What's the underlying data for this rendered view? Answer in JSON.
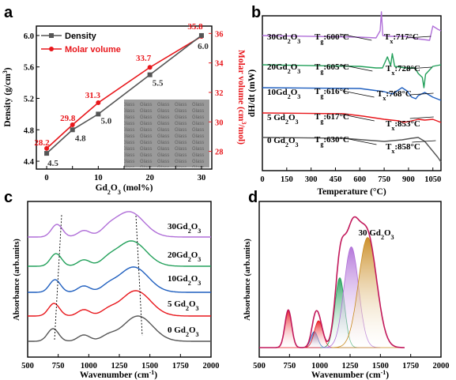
{
  "colors": {
    "density": "#555555",
    "molar": "#e8161b",
    "purple": "#b06fd8",
    "green": "#22a05a",
    "blue": "#1f5fbf",
    "red": "#e8161b",
    "gray": "#555555"
  },
  "chart_data": [
    {
      "panel": "a",
      "type": "line",
      "xlabel_html": "Gd<tspan baseline-shift=\"sub\" font-size=\"8\">2</tspan>O<tspan baseline-shift=\"sub\" font-size=\"8\">3</tspan> (mol%)",
      "xlabel": "Gd2O3 (mol%)",
      "ylabel": "Density (g/cm3)",
      "y2label": "Molar volume (cm3/mol)",
      "x": [
        0,
        5,
        10,
        20,
        30
      ],
      "xticks": [
        "0",
        "5",
        "10",
        "15",
        "20",
        "25",
        "30"
      ],
      "xlim": [
        -2,
        32
      ],
      "ylim": [
        4.3,
        6.12
      ],
      "yticks": [
        "4.4",
        "4.8",
        "5.2",
        "5.6",
        "6.0"
      ],
      "y2lim": [
        26.8,
        36.5
      ],
      "y2ticks": [
        "28",
        "30",
        "32",
        "34",
        "36"
      ],
      "series": [
        {
          "name": "Density",
          "axis": "left",
          "values": [
            4.5,
            4.8,
            5.0,
            5.5,
            6.0
          ],
          "labels": [
            "4.5",
            "4.8",
            "5.0",
            "5.5",
            "6.0"
          ]
        },
        {
          "name": "Molar volume",
          "axis": "right",
          "values": [
            28.2,
            29.8,
            31.3,
            33.7,
            35.8
          ],
          "labels": [
            "28.2",
            "29.8",
            "31.3",
            "33.7",
            "35.8"
          ]
        }
      ],
      "inset": "photograph of glass samples on printed 'Glass' text background"
    },
    {
      "panel": "b",
      "type": "line",
      "xlabel": "Temperature (°C)",
      "ylabel": "dH/dt (mW)",
      "xticks": [
        "0",
        "150",
        "300",
        "450",
        "600",
        "750",
        "900",
        "1050"
      ],
      "xlim": [
        0,
        1100
      ],
      "series": [
        {
          "name": "30Gd2O3",
          "color": "#b06fd8",
          "Tg": "600°C",
          "Tx": "717°C"
        },
        {
          "name": "20Gd2O3",
          "color": "#22a05a",
          "Tg": "605°C",
          "Tx": "728°C"
        },
        {
          "name": "10Gd2O3",
          "color": "#1f5fbf",
          "Tg": "616°C",
          "Tx": "768°C"
        },
        {
          "name": "5 Gd2O3",
          "color": "#e8161b",
          "Tg": "617°C",
          "Tx": "853°C"
        },
        {
          "name": "0 Gd2O3",
          "color": "#555555",
          "Tg": "630°C",
          "Tx": "858°C"
        }
      ]
    },
    {
      "panel": "c",
      "type": "line",
      "xlabel": "Wavenumber (cm-1)",
      "ylabel": "Absorbance (arb.units)",
      "xticks": [
        "500",
        "750",
        "1000",
        "1250",
        "1500",
        "1750",
        "2000"
      ],
      "xlim": [
        500,
        2000
      ],
      "series": [
        {
          "name": "30Gd2O3",
          "color": "#b06fd8"
        },
        {
          "name": "20Gd2O3",
          "color": "#22a05a"
        },
        {
          "name": "10Gd2O3",
          "color": "#1f5fbf"
        },
        {
          "name": "5 Gd2O3",
          "color": "#e8161b"
        },
        {
          "name": "0 Gd2O3",
          "color": "#555555"
        }
      ]
    },
    {
      "panel": "d",
      "type": "area",
      "title": "30 Gd2O3",
      "xlabel": "Wavenumber (cm-1)",
      "ylabel": "Absorbance (arb.units)",
      "xticks": [
        "500",
        "750",
        "1000",
        "1250",
        "1500",
        "1750",
        "2000"
      ],
      "xlim": [
        500,
        2000
      ],
      "peaks": [
        {
          "center": 740,
          "height": 0.28,
          "width": 28,
          "color": "#e8161b"
        },
        {
          "center": 955,
          "height": 0.12,
          "width": 28,
          "color": "#1f5fbf"
        },
        {
          "center": 990,
          "height": 0.2,
          "width": 35,
          "color": "#e8161b"
        },
        {
          "center": 1165,
          "height": 0.52,
          "width": 40,
          "color": "#22a05a"
        },
        {
          "center": 1260,
          "height": 0.75,
          "width": 60,
          "color": "#b06fd8"
        },
        {
          "center": 1395,
          "height": 0.82,
          "width": 75,
          "color": "#c98a1e"
        }
      ]
    }
  ],
  "text": {
    "panel_a": "a",
    "panel_b": "b",
    "panel_c": "c",
    "panel_d": "d",
    "legend_density": "Density",
    "legend_molar": "Molar volume"
  }
}
